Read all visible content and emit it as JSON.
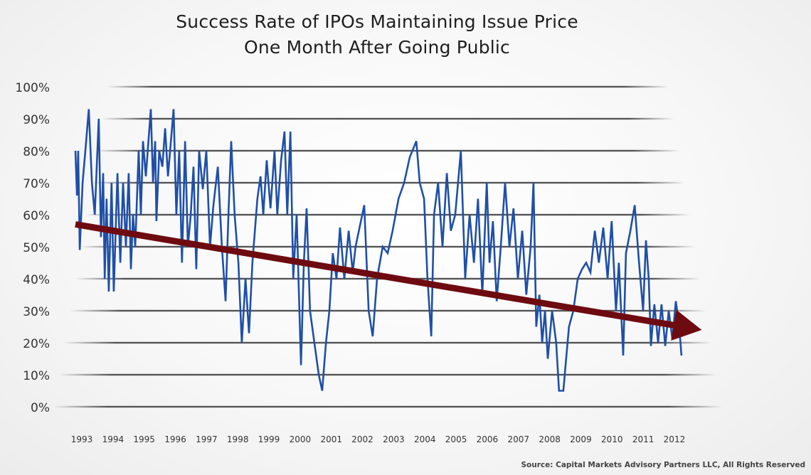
{
  "chart_data": {
    "type": "line",
    "title": "Success Rate of IPOs Maintaining Issue Price",
    "subtitle": "One Month After Going Public",
    "xlabel": "",
    "ylabel": "",
    "ylim": [
      0,
      100
    ],
    "xlim": [
      1993,
      2012.5
    ],
    "grid": true,
    "y_ticks": [
      "100%",
      "90%",
      "80%",
      "70%",
      "60%",
      "50%",
      "40%",
      "30%",
      "20%",
      "10%",
      "0%"
    ],
    "x_ticks": [
      "1993",
      "1994",
      "1995",
      "1996",
      "1997",
      "1998",
      "1999",
      "2000",
      "2001",
      "2002",
      "2003",
      "2004",
      "2005",
      "2006",
      "2007",
      "2008",
      "2009",
      "2010",
      "2011",
      "2012"
    ],
    "series": [
      {
        "name": "Success rate",
        "color": "#1f4fa8",
        "points": [
          [
            1993.0,
            80
          ],
          [
            1993.05,
            66
          ],
          [
            1993.09,
            80
          ],
          [
            1993.14,
            49
          ],
          [
            1993.23,
            70
          ],
          [
            1993.32,
            80
          ],
          [
            1993.43,
            93
          ],
          [
            1993.53,
            70
          ],
          [
            1993.62,
            60
          ],
          [
            1993.75,
            90
          ],
          [
            1993.82,
            53
          ],
          [
            1993.89,
            73
          ],
          [
            1993.94,
            40
          ],
          [
            1994.0,
            65
          ],
          [
            1994.07,
            36
          ],
          [
            1994.16,
            70
          ],
          [
            1994.23,
            36
          ],
          [
            1994.35,
            73
          ],
          [
            1994.44,
            45
          ],
          [
            1994.53,
            70
          ],
          [
            1994.62,
            50
          ],
          [
            1994.71,
            73
          ],
          [
            1994.78,
            43
          ],
          [
            1994.85,
            60
          ],
          [
            1994.92,
            50
          ],
          [
            1995.03,
            80
          ],
          [
            1995.1,
            60
          ],
          [
            1995.17,
            83
          ],
          [
            1995.26,
            72
          ],
          [
            1995.42,
            93
          ],
          [
            1995.49,
            70
          ],
          [
            1995.56,
            83
          ],
          [
            1995.6,
            58
          ],
          [
            1995.69,
            80
          ],
          [
            1995.79,
            75
          ],
          [
            1995.88,
            87
          ],
          [
            1995.97,
            72
          ],
          [
            1996.15,
            93
          ],
          [
            1996.24,
            60
          ],
          [
            1996.33,
            80
          ],
          [
            1996.42,
            45
          ],
          [
            1996.52,
            83
          ],
          [
            1996.61,
            50
          ],
          [
            1996.7,
            60
          ],
          [
            1996.79,
            75
          ],
          [
            1996.88,
            43
          ],
          [
            1996.97,
            80
          ],
          [
            1997.09,
            68
          ],
          [
            1997.2,
            80
          ],
          [
            1997.32,
            50
          ],
          [
            1997.43,
            63
          ],
          [
            1997.57,
            75
          ],
          [
            1997.7,
            50
          ],
          [
            1997.82,
            33
          ],
          [
            1997.91,
            60
          ],
          [
            1998.0,
            83
          ],
          [
            1998.11,
            60
          ],
          [
            1998.23,
            45
          ],
          [
            1998.34,
            20
          ],
          [
            1998.46,
            40
          ],
          [
            1998.57,
            23
          ],
          [
            1998.68,
            45
          ],
          [
            1998.84,
            65
          ],
          [
            1998.94,
            72
          ],
          [
            1999.03,
            60
          ],
          [
            1999.14,
            77
          ],
          [
            1999.26,
            62
          ],
          [
            1999.39,
            80
          ],
          [
            1999.48,
            60
          ],
          [
            1999.6,
            77
          ],
          [
            1999.71,
            86
          ],
          [
            1999.8,
            60
          ],
          [
            1999.9,
            86
          ],
          [
            1999.99,
            40
          ],
          [
            2000.1,
            60
          ],
          [
            2000.24,
            13
          ],
          [
            2000.33,
            45
          ],
          [
            2000.42,
            62
          ],
          [
            2000.53,
            30
          ],
          [
            2000.67,
            20
          ],
          [
            2000.81,
            10
          ],
          [
            2000.92,
            5
          ],
          [
            2001.04,
            20
          ],
          [
            2001.15,
            30
          ],
          [
            2001.26,
            48
          ],
          [
            2001.38,
            40
          ],
          [
            2001.49,
            56
          ],
          [
            2001.63,
            40
          ],
          [
            2001.77,
            55
          ],
          [
            2001.9,
            42
          ],
          [
            2001.99,
            50
          ],
          [
            2002.27,
            63
          ],
          [
            2002.41,
            30
          ],
          [
            2002.54,
            22
          ],
          [
            2002.68,
            40
          ],
          [
            2002.86,
            50
          ],
          [
            2003.02,
            48
          ],
          [
            2003.18,
            55
          ],
          [
            2003.37,
            65
          ],
          [
            2003.55,
            70
          ],
          [
            2003.73,
            78
          ],
          [
            2003.94,
            83
          ],
          [
            2004.05,
            70
          ],
          [
            2004.19,
            65
          ],
          [
            2004.3,
            40
          ],
          [
            2004.42,
            22
          ],
          [
            2004.51,
            60
          ],
          [
            2004.64,
            70
          ],
          [
            2004.78,
            50
          ],
          [
            2004.92,
            73
          ],
          [
            2005.05,
            55
          ],
          [
            2005.19,
            60
          ],
          [
            2005.37,
            80
          ],
          [
            2005.51,
            40
          ],
          [
            2005.65,
            60
          ],
          [
            2005.79,
            45
          ],
          [
            2005.92,
            65
          ],
          [
            2006.06,
            35
          ],
          [
            2006.2,
            70
          ],
          [
            2006.29,
            45
          ],
          [
            2006.4,
            58
          ],
          [
            2006.52,
            33
          ],
          [
            2006.65,
            50
          ],
          [
            2006.79,
            70
          ],
          [
            2006.93,
            50
          ],
          [
            2007.06,
            62
          ],
          [
            2007.2,
            40
          ],
          [
            2007.34,
            55
          ],
          [
            2007.47,
            35
          ],
          [
            2007.61,
            50
          ],
          [
            2007.7,
            70
          ],
          [
            2007.79,
            25
          ],
          [
            2007.89,
            35
          ],
          [
            2007.98,
            20
          ],
          [
            2008.07,
            30
          ],
          [
            2008.16,
            15
          ],
          [
            2008.3,
            30
          ],
          [
            2008.43,
            20
          ],
          [
            2008.52,
            5
          ],
          [
            2008.66,
            5
          ],
          [
            2008.75,
            15
          ],
          [
            2008.84,
            25
          ],
          [
            2008.98,
            30
          ],
          [
            2009.12,
            40
          ],
          [
            2009.26,
            43
          ],
          [
            2009.39,
            45
          ],
          [
            2009.53,
            42
          ],
          [
            2009.67,
            55
          ],
          [
            2009.8,
            45
          ],
          [
            2009.94,
            56
          ],
          [
            2010.08,
            40
          ],
          [
            2010.21,
            58
          ],
          [
            2010.35,
            30
          ],
          [
            2010.44,
            45
          ],
          [
            2010.58,
            16
          ],
          [
            2010.67,
            48
          ],
          [
            2010.81,
            55
          ],
          [
            2010.95,
            63
          ],
          [
            2011.09,
            45
          ],
          [
            2011.22,
            30
          ],
          [
            2011.31,
            52
          ],
          [
            2011.4,
            40
          ],
          [
            2011.47,
            19
          ],
          [
            2011.58,
            32
          ],
          [
            2011.7,
            20
          ],
          [
            2011.81,
            32
          ],
          [
            2011.93,
            19
          ],
          [
            2012.04,
            30
          ],
          [
            2012.16,
            21
          ],
          [
            2012.27,
            33
          ],
          [
            2012.38,
            25
          ],
          [
            2012.45,
            16
          ]
        ]
      }
    ],
    "trend": {
      "name": "Downward trend",
      "color": "#6e0b10",
      "start": [
        1993.0,
        57
      ],
      "end": [
        2013.1,
        24
      ]
    },
    "source": "Source: Capital Markets Advisory Partners LLC, All Rights Reserved"
  }
}
